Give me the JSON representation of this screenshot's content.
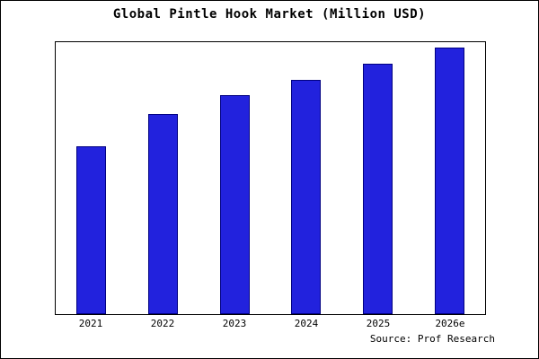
{
  "title": "Global Pintle Hook Market (Million USD)",
  "source": "Source: Prof Research",
  "colors": {
    "bar_fill": "#2222dd",
    "bar_border": "#000080",
    "frame_border": "#000000",
    "background": "#ffffff"
  },
  "chart_data": {
    "type": "bar",
    "categories": [
      "2021",
      "2022",
      "2023",
      "2024",
      "2025",
      "2026e"
    ],
    "values": [
      63,
      75,
      82,
      88,
      94,
      100
    ],
    "title": "Global Pintle Hook Market (Million USD)",
    "xlabel": "",
    "ylabel": "",
    "ylim": [
      0,
      102
    ],
    "grid": false,
    "legend": false,
    "annotation": "Source: Prof Research"
  }
}
